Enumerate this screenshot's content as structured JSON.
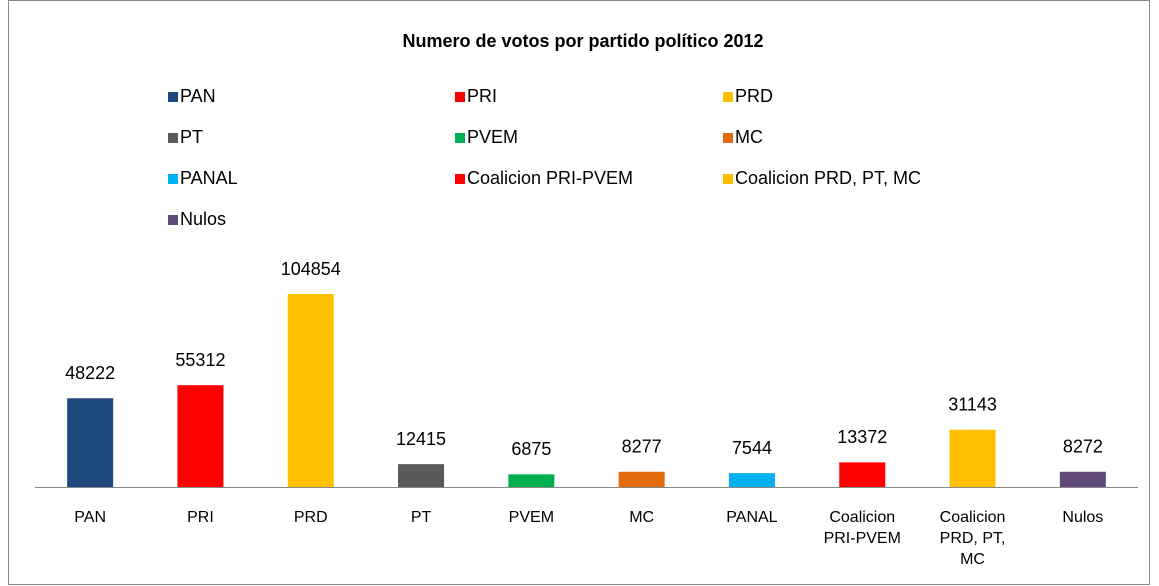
{
  "chart_data": {
    "type": "bar",
    "title": "Numero de votos por partido político 2012",
    "categories": [
      "PAN",
      "PRI",
      "PRD",
      "PT",
      "PVEM",
      "MC",
      "PANAL",
      "Coalicion PRI-PVEM",
      "Coalicion PRD, PT, MC",
      "Nulos"
    ],
    "values": [
      48222,
      55312,
      104854,
      12415,
      6875,
      8277,
      7544,
      13372,
      31143,
      8272
    ],
    "colors": [
      "#1f497d",
      "#ff0000",
      "#ffc000",
      "#595959",
      "#00b050",
      "#e36c0a",
      "#00b0f0",
      "#ff0000",
      "#ffc000",
      "#604a7b"
    ],
    "legend": "top"
  }
}
